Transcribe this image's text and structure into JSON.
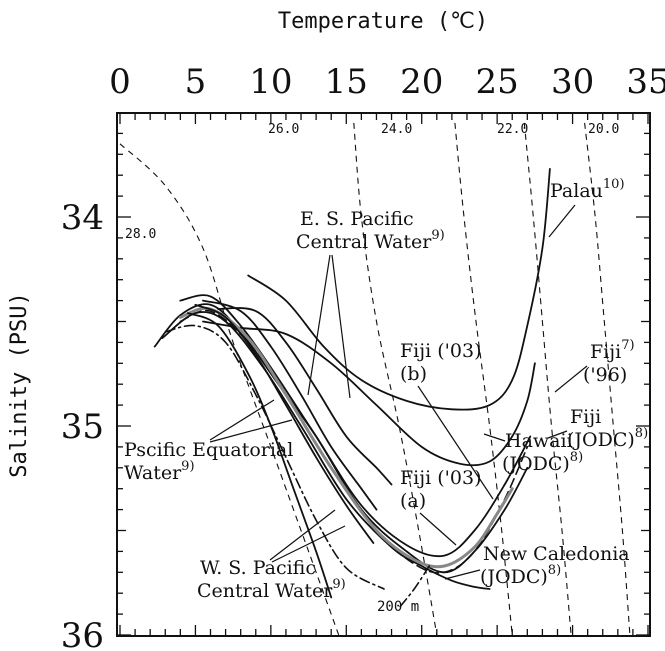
{
  "chart_data": {
    "type": "line",
    "xlabel": "Temperature (℃)",
    "ylabel": "Salinity (PSU)",
    "xlim": [
      0,
      35
    ],
    "ylim": [
      33.5,
      36
    ],
    "x_ticks": [
      "0",
      "5",
      "10",
      "15",
      "20",
      "25",
      "30",
      "35"
    ],
    "y_ticks": [
      "34",
      "35",
      "36"
    ],
    "series": [
      {
        "name": "Palau",
        "ref": "10)",
        "style": "solid",
        "color": "#111111",
        "points": [
          [
            8.5,
            34.28
          ],
          [
            11,
            34.4
          ],
          [
            13.5,
            34.62
          ],
          [
            16,
            34.78
          ],
          [
            19,
            34.88
          ],
          [
            22,
            34.92
          ],
          [
            24.5,
            34.9
          ],
          [
            26,
            34.78
          ],
          [
            27,
            34.52
          ],
          [
            28,
            34.15
          ],
          [
            28.5,
            33.77
          ]
        ]
      },
      {
        "name": "Fiji ('96)",
        "ref": "7)",
        "style": "solid",
        "color": "#111111",
        "points": [
          [
            5.5,
            34.5
          ],
          [
            8,
            34.53
          ],
          [
            11,
            34.56
          ],
          [
            14,
            34.7
          ],
          [
            17,
            34.9
          ],
          [
            20,
            35.1
          ],
          [
            22.5,
            35.18
          ],
          [
            24.5,
            35.17
          ],
          [
            26,
            35.05
          ],
          [
            27,
            34.88
          ],
          [
            27.5,
            34.7
          ]
        ]
      },
      {
        "name": "Fiji (JODC)",
        "ref": "8)",
        "style": "solid",
        "color": "#111111",
        "points": [
          [
            4,
            34.4
          ],
          [
            6,
            34.38
          ],
          [
            8,
            34.52
          ],
          [
            10,
            34.72
          ],
          [
            13,
            35.05
          ],
          [
            16,
            35.38
          ],
          [
            19,
            35.57
          ],
          [
            21.5,
            35.62
          ],
          [
            23.5,
            35.5
          ],
          [
            25.5,
            35.28
          ],
          [
            27.2,
            35.05
          ]
        ]
      },
      {
        "name": "Hawaii (JODC)",
        "ref": "8)",
        "style": "solid",
        "color": "#111111",
        "points": [
          [
            2.3,
            34.62
          ],
          [
            4,
            34.47
          ],
          [
            6,
            34.42
          ],
          [
            8,
            34.55
          ],
          [
            10.5,
            34.8
          ],
          [
            13,
            35.05
          ],
          [
            16,
            35.4
          ],
          [
            19,
            35.6
          ],
          [
            21.5,
            35.7
          ],
          [
            23.5,
            35.6
          ],
          [
            25.5,
            35.4
          ],
          [
            27,
            35.2
          ]
        ]
      },
      {
        "name": "New Caledonia (JODC)",
        "ref": "8)",
        "style": "solid",
        "color": "#111111",
        "points": [
          [
            2.8,
            34.58
          ],
          [
            5,
            34.46
          ],
          [
            7,
            34.5
          ],
          [
            9.5,
            34.72
          ],
          [
            12,
            35.0
          ],
          [
            15,
            35.35
          ],
          [
            18,
            35.58
          ],
          [
            20,
            35.67
          ],
          [
            22,
            35.74
          ],
          [
            23.5,
            35.77
          ],
          [
            24.5,
            35.78
          ]
        ]
      },
      {
        "name": "Fiji ('03) (a)",
        "ref": "",
        "style": "dashed",
        "color": "#111111",
        "points": [
          [
            4,
            34.5
          ],
          [
            6,
            34.45
          ],
          [
            8.5,
            34.6
          ],
          [
            11,
            34.85
          ],
          [
            14,
            35.2
          ],
          [
            17,
            35.5
          ],
          [
            19.5,
            35.66
          ],
          [
            21.5,
            35.7
          ],
          [
            23.5,
            35.6
          ],
          [
            25.5,
            35.35
          ],
          [
            27,
            35.1
          ]
        ]
      },
      {
        "name": "Fiji ('03) (b)",
        "ref": "",
        "style": "solid",
        "color": "#888888",
        "points": [
          [
            4,
            34.48
          ],
          [
            6,
            34.44
          ],
          [
            8.5,
            34.58
          ],
          [
            11,
            34.85
          ],
          [
            14,
            35.2
          ],
          [
            17,
            35.5
          ],
          [
            19.5,
            35.64
          ],
          [
            21.5,
            35.67
          ],
          [
            23.5,
            35.58
          ],
          [
            25,
            35.42
          ],
          [
            26,
            35.3
          ]
        ]
      },
      {
        "name": "E. S. Pacific Central Water",
        "ref": "9)",
        "style": "solid",
        "color": "#111111",
        "points": [
          [
            6.5,
            34.44
          ],
          [
            9,
            34.45
          ],
          [
            11,
            34.6
          ],
          [
            13,
            34.82
          ],
          [
            15,
            35.05
          ],
          [
            17,
            35.2
          ],
          [
            18,
            35.28
          ]
        ]
      },
      {
        "name": "E. S. Pacific Central Water (2)",
        "ref": "",
        "style": "solid",
        "color": "#111111",
        "points": [
          [
            5.5,
            34.4
          ],
          [
            8,
            34.45
          ],
          [
            10,
            34.62
          ],
          [
            12,
            34.85
          ],
          [
            14,
            35.1
          ],
          [
            16,
            35.3
          ],
          [
            17,
            35.4
          ]
        ]
      },
      {
        "name": "Pscific Equatorial Water",
        "ref": "9)",
        "style": "solid",
        "color": "#111111",
        "points": [
          [
            5,
            34.42
          ],
          [
            7,
            34.48
          ],
          [
            9,
            34.66
          ],
          [
            11,
            34.9
          ],
          [
            13,
            35.15
          ],
          [
            15,
            35.38
          ],
          [
            16.8,
            35.56
          ]
        ]
      },
      {
        "name": "W. S. Pacific Central Water",
        "ref": "9)",
        "style": "solid",
        "color": "#111111",
        "points": [
          [
            4.5,
            34.46
          ],
          [
            6.5,
            34.52
          ],
          [
            8.5,
            34.75
          ],
          [
            10,
            35.0
          ],
          [
            11.5,
            35.3
          ],
          [
            13,
            35.6
          ],
          [
            14,
            35.82
          ]
        ]
      },
      {
        "name": "W. S. Pacific Central Water (2)",
        "ref": "",
        "style": "dashdot",
        "color": "#111111",
        "points": [
          [
            3,
            34.55
          ],
          [
            5,
            34.52
          ],
          [
            7,
            34.6
          ],
          [
            9,
            34.85
          ],
          [
            11,
            35.15
          ],
          [
            13,
            35.45
          ],
          [
            15,
            35.68
          ],
          [
            17.5,
            35.78
          ]
        ]
      },
      {
        "name": "200 m",
        "ref": "",
        "style": "dashdot",
        "color": "#111111",
        "points": [
          [
            20.5,
            35.67
          ],
          [
            19.5,
            35.78
          ],
          [
            18.5,
            35.87
          ]
        ]
      }
    ],
    "isopycnals": [
      {
        "label": "28.0",
        "points": [
          [
            0,
            33.65
          ],
          [
            3,
            33.85
          ],
          [
            5.5,
            34.15
          ],
          [
            7.5,
            34.6
          ],
          [
            10,
            35.1
          ],
          [
            12.5,
            35.6
          ],
          [
            14.5,
            36.0
          ]
        ]
      },
      {
        "label": "26.0",
        "points": [
          [
            15.5,
            33.55
          ],
          [
            16,
            34.0
          ],
          [
            17,
            34.5
          ],
          [
            18.5,
            35.0
          ],
          [
            19.8,
            35.5
          ],
          [
            21,
            36.0
          ]
        ]
      },
      {
        "label": "24.0",
        "points": [
          [
            22.2,
            33.55
          ],
          [
            22.8,
            34.0
          ],
          [
            23.6,
            34.5
          ],
          [
            24.5,
            35.0
          ],
          [
            25.3,
            35.5
          ],
          [
            26,
            36.0
          ]
        ]
      },
      {
        "label": "22.0",
        "points": [
          [
            26.8,
            33.55
          ],
          [
            27.4,
            34.0
          ],
          [
            28,
            34.5
          ],
          [
            28.6,
            35.0
          ],
          [
            29.3,
            35.5
          ],
          [
            29.9,
            36.0
          ]
        ]
      },
      {
        "label": "20.0",
        "points": [
          [
            30.8,
            33.55
          ],
          [
            31.5,
            34.0
          ],
          [
            32.1,
            34.5
          ],
          [
            32.7,
            35.0
          ],
          [
            33.3,
            35.5
          ],
          [
            33.8,
            36.0
          ]
        ]
      }
    ],
    "annotations": [
      {
        "id": "palau",
        "text": "Palau",
        "sup": "10)"
      },
      {
        "id": "es",
        "text": "E. S. Pacific",
        "text2": "Central Water",
        "sup": "9)"
      },
      {
        "id": "fiji03b",
        "text": "Fiji ('03)",
        "text2": "(b)"
      },
      {
        "id": "fiji96",
        "text": "Fiji",
        "sup": "7)",
        "text2": "('96)"
      },
      {
        "id": "fijijodc",
        "text": "Fiji",
        "text2": "(JODC)",
        "sup": "8)"
      },
      {
        "id": "pew",
        "text": "Pscific Equatorial",
        "text2": "Water",
        "sup": "9)"
      },
      {
        "id": "hawaii",
        "text": "Hawaii",
        "text2": "(JODC)",
        "sup": "8)"
      },
      {
        "id": "fiji03a",
        "text": "Fiji ('03)",
        "text2": "(a)"
      },
      {
        "id": "nc",
        "text": "New Caledonia",
        "text2": "(JODC)",
        "sup": "8)"
      },
      {
        "id": "ws",
        "text": "W. S. Pacific",
        "text2": "Central Water",
        "sup": "9)"
      },
      {
        "id": "d200",
        "text": "200 m"
      }
    ]
  }
}
